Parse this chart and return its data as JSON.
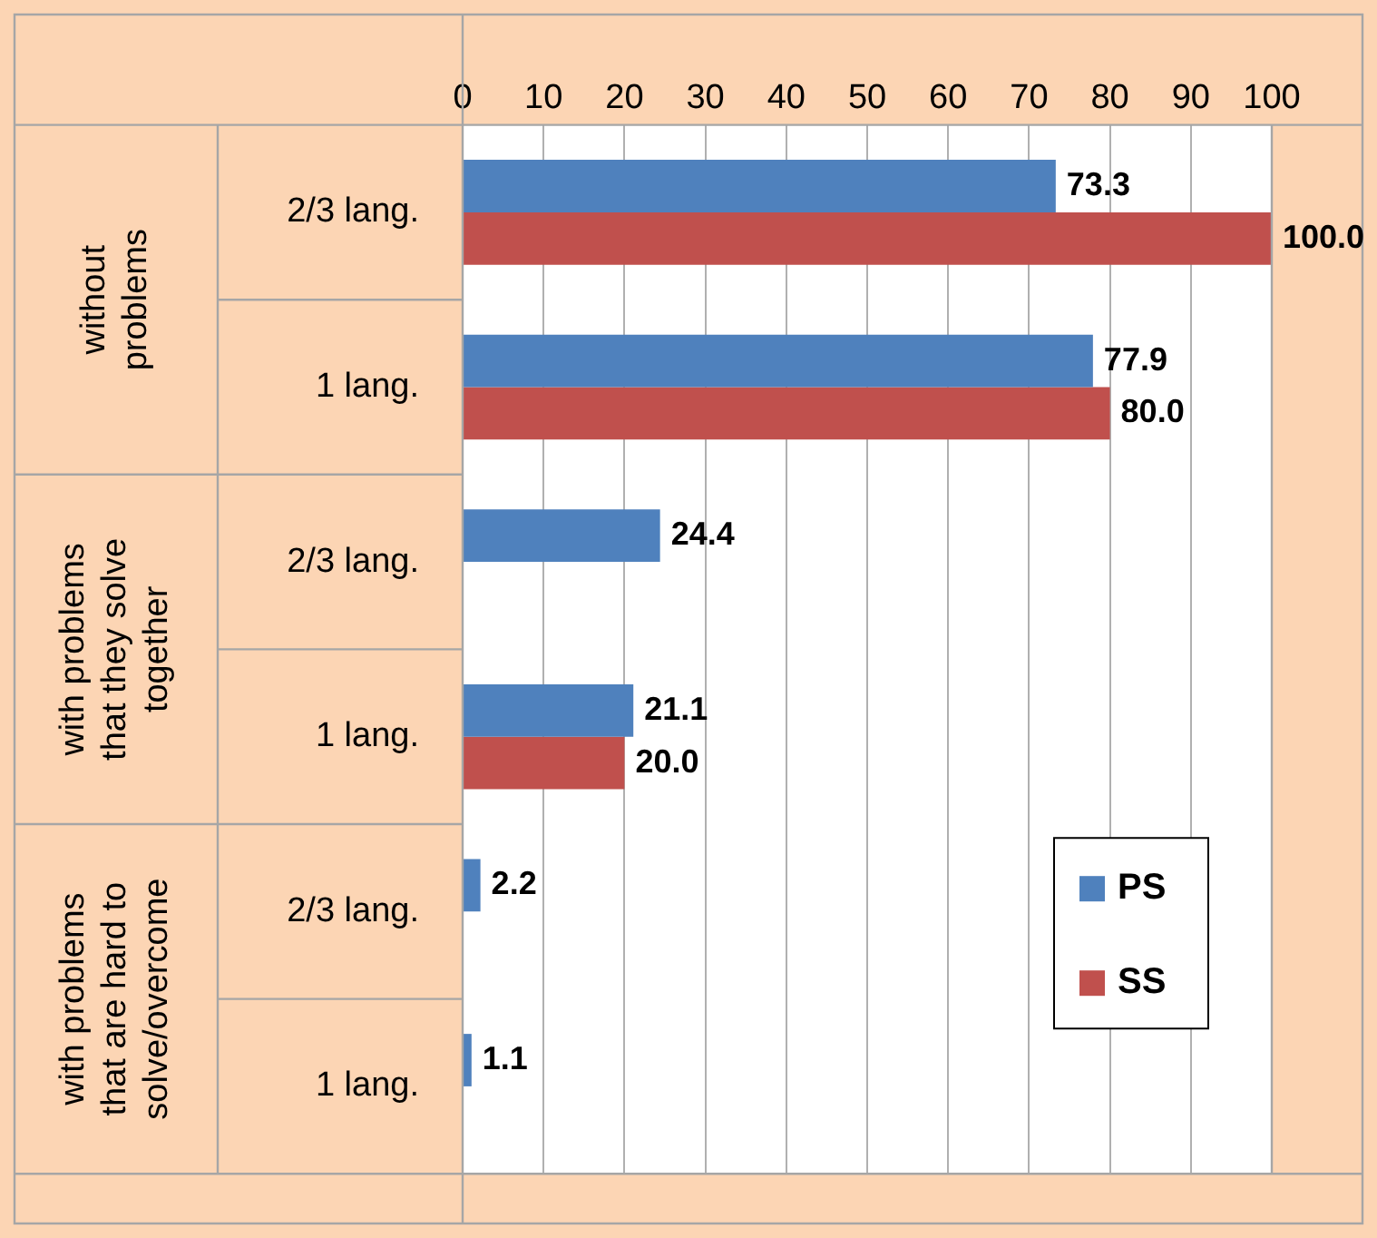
{
  "chart_data": {
    "type": "bar",
    "orientation": "horizontal",
    "categories": [
      "2/3 lang.",
      "1 lang.",
      "2/3 lang.",
      "1 lang.",
      "2/3 lang.",
      "1 lang."
    ],
    "series": [
      {
        "name": "PS",
        "color": "#4f81bd",
        "values": [
          73.3,
          77.9,
          24.4,
          21.1,
          2.2,
          1.1
        ],
        "value_labels": [
          "73.3",
          "77.9",
          "24.4",
          "21.1",
          "2.2",
          "1.1"
        ]
      },
      {
        "name": "SS",
        "color": "#c0504d",
        "values": [
          100,
          80,
          null,
          20,
          null,
          null
        ],
        "value_labels": [
          "100.0",
          "80.0",
          null,
          "20.0",
          null,
          null
        ]
      }
    ],
    "xlim": [
      0,
      100
    ],
    "xticks": [
      0,
      10,
      20,
      30,
      40,
      50,
      60,
      70,
      80,
      90,
      100
    ],
    "grid": "x",
    "legend": "bottom right",
    "annotations": [
      "without problems",
      "with problems that they solve together",
      "with problems that are hard to solve/overcome"
    ]
  }
}
